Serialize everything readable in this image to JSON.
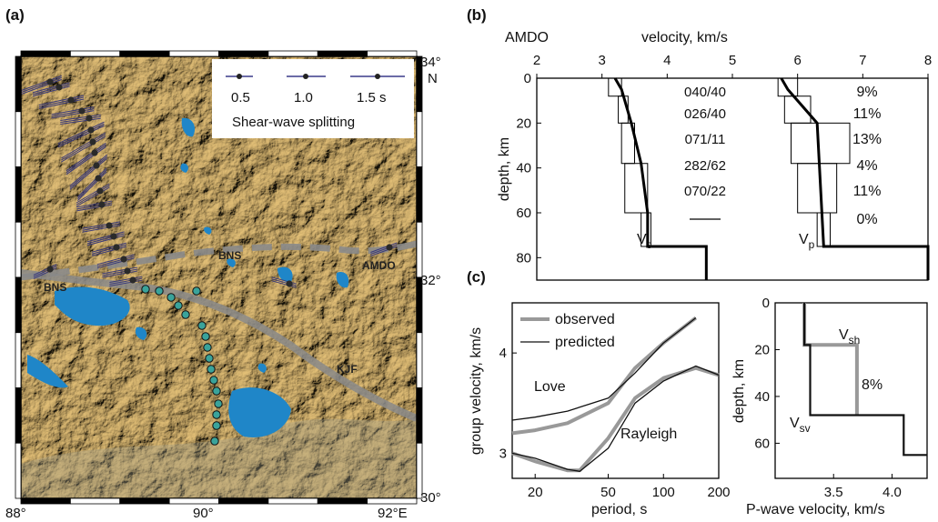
{
  "figure": {
    "panel_a": {
      "tag": "(a)",
      "lat_labels": [
        "34°",
        "N",
        "32°",
        "30°"
      ],
      "lon_labels": [
        "88°",
        "90°",
        "92°E"
      ],
      "legend": {
        "values": [
          "0.5",
          "1.0",
          "1.5 s"
        ],
        "title": "Shear-wave splitting"
      },
      "places": [
        "BNS",
        "BNS",
        "AMDO",
        "KJF"
      ],
      "colors": {
        "terrain": "#c9a45a",
        "lake": "#1f86c8",
        "fault": "#8a8a8a",
        "station": "#2a2a2a",
        "station_alt": "#3aa39a"
      }
    },
    "panel_b": {
      "tag": "(b)",
      "station": "AMDO",
      "xlabel": "velocity, km/s",
      "ylabel": "depth, km",
      "xticks": [
        "2",
        "3",
        "4",
        "5",
        "6",
        "7",
        "8"
      ],
      "yticks": [
        "0",
        "20",
        "40",
        "60",
        "80"
      ],
      "vs_label": "V",
      "vs_sub": "s",
      "vp_label": "V",
      "vp_sub": "p",
      "orientations": [
        "040/40",
        "026/40",
        "071/11",
        "282/62",
        "070/22"
      ],
      "anisotropy": [
        "9%",
        "11%",
        "13%",
        "4%",
        "11%",
        "0%"
      ]
    },
    "panel_c": {
      "tag": "(c)",
      "left": {
        "ylabel": "group velocity, km/s",
        "xlabel": "period, s",
        "xticks": [
          "20",
          "50",
          "100",
          "200"
        ],
        "yticks": [
          "3",
          "4"
        ],
        "legend": [
          "observed",
          "predicted"
        ],
        "wave_labels": [
          "Love",
          "Rayleigh"
        ]
      },
      "right": {
        "ylabel": "depth, km",
        "xlabel": "P-wave velocity, km/s",
        "xticks": [
          "3.5",
          "4.0"
        ],
        "yticks": [
          "0",
          "20",
          "40",
          "60"
        ],
        "vsh": "V",
        "vsh_sub": "sh",
        "vsv": "V",
        "vsv_sub": "sv",
        "pct": "8%"
      }
    }
  },
  "chart_data": [
    {
      "type": "line",
      "panel": "b",
      "xlabel": "velocity, km/s",
      "ylabel": "depth, km",
      "xlim": [
        2,
        8
      ],
      "ylim": [
        90,
        0
      ],
      "series": [
        {
          "role": "Vs-mean",
          "x": [
            3.2,
            3.3,
            3.3,
            3.45,
            3.45,
            3.6,
            3.6,
            3.7,
            3.7,
            4.6,
            4.6
          ],
          "y": [
            0,
            5,
            5,
            20,
            20,
            38,
            38,
            60,
            75,
            75,
            90
          ]
        },
        {
          "role": "Vp-mean",
          "x": [
            5.75,
            5.85,
            5.85,
            6.3,
            6.3,
            6.4,
            6.4,
            8.0,
            8.0
          ],
          "y": [
            0,
            5,
            5,
            20,
            20,
            75,
            75,
            75,
            90
          ]
        }
      ],
      "orientations": [
        "040/40",
        "026/40",
        "071/11",
        "282/62",
        "070/22"
      ],
      "anisotropy": [
        "9%",
        "11%",
        "13%",
        "4%",
        "11%",
        "0%"
      ]
    },
    {
      "type": "line",
      "panel": "c-left",
      "xlabel": "period, s",
      "ylabel": "group velocity, km/s",
      "xscale": "log",
      "xlim": [
        15,
        200
      ],
      "ylim": [
        2.75,
        4.5
      ],
      "series": [
        {
          "name": "observed",
          "x": [
            15,
            20,
            30,
            50,
            70,
            100,
            150
          ],
          "y": [
            3.2,
            3.23,
            3.3,
            3.5,
            3.85,
            4.1,
            4.35
          ]
        },
        {
          "name": "predicted",
          "x": [
            15,
            20,
            30,
            50,
            70,
            100,
            150
          ],
          "y": [
            3.33,
            3.36,
            3.42,
            3.55,
            3.8,
            4.1,
            4.35
          ]
        },
        {
          "name": "observed",
          "x": [
            15,
            20,
            30,
            35,
            50,
            70,
            100,
            150,
            200
          ],
          "y": [
            3.0,
            2.92,
            2.83,
            2.83,
            3.15,
            3.55,
            3.75,
            3.85,
            3.78
          ]
        },
        {
          "name": "predicted",
          "x": [
            15,
            20,
            30,
            35,
            50,
            70,
            100,
            150,
            200
          ],
          "y": [
            3.0,
            2.95,
            2.84,
            2.82,
            3.05,
            3.5,
            3.72,
            3.87,
            3.78
          ]
        }
      ]
    },
    {
      "type": "line",
      "panel": "c-right",
      "xlabel": "P-wave velocity, km/s",
      "ylabel": "depth, km",
      "xlim": [
        3.0,
        4.3
      ],
      "ylim": [
        75,
        0
      ],
      "series": [
        {
          "role": "Vsh",
          "x": [
            3.25,
            3.25,
            3.7,
            3.7
          ],
          "y": [
            0,
            18,
            18,
            48
          ]
        },
        {
          "role": "Vsv",
          "x": [
            3.25,
            3.25,
            3.3,
            3.3,
            4.1,
            4.1,
            4.3
          ],
          "y": [
            0,
            18,
            18,
            48,
            48,
            65,
            65
          ]
        }
      ]
    }
  ]
}
